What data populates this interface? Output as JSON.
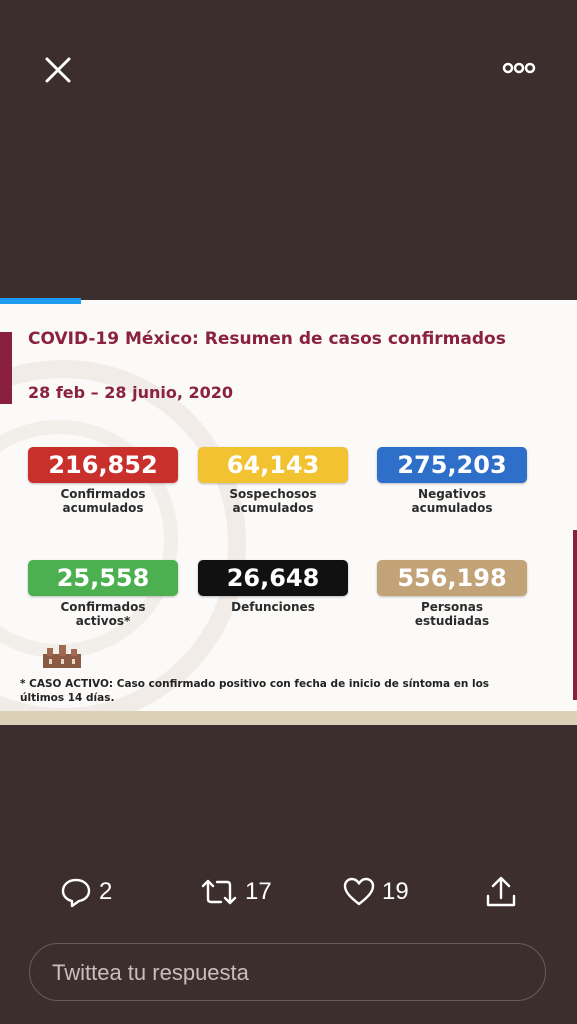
{
  "header": {
    "close_icon": "close-icon",
    "more_icon": "more-horizontal-icon"
  },
  "media": {
    "progress_fraction": 0.14,
    "title": "COVID-19 México: Resumen de casos confirmados",
    "date_range": "28 feb – 28 junio, 2020",
    "stats": [
      {
        "value": "216,852",
        "label": "Confirmados\nacumulados",
        "color": "#c9302c"
      },
      {
        "value": "64,143",
        "label": "Sospechosos\nacumulados",
        "color": "#f2c230"
      },
      {
        "value": "275,203",
        "label": "Negativos\nacumulados",
        "color": "#2e6fc9"
      },
      {
        "value": "25,558",
        "label": "Confirmados\nactivos*",
        "color": "#4caf50"
      },
      {
        "value": "26,648",
        "label": "Defunciones",
        "color": "#111111"
      },
      {
        "value": "556,198",
        "label": "Personas\nestudiadas",
        "color": "#c2a277"
      }
    ],
    "footnote": "* CASO ACTIVO: Caso confirmado positivo con fecha de inicio de síntoma en los últimos 14 días."
  },
  "actions": {
    "reply_icon": "reply-icon",
    "reply_count": "2",
    "retweet_icon": "retweet-icon",
    "retweet_count": "17",
    "like_icon": "heart-icon",
    "like_count": "19",
    "share_icon": "share-icon"
  },
  "reply": {
    "placeholder": "Twittea tu respuesta"
  }
}
